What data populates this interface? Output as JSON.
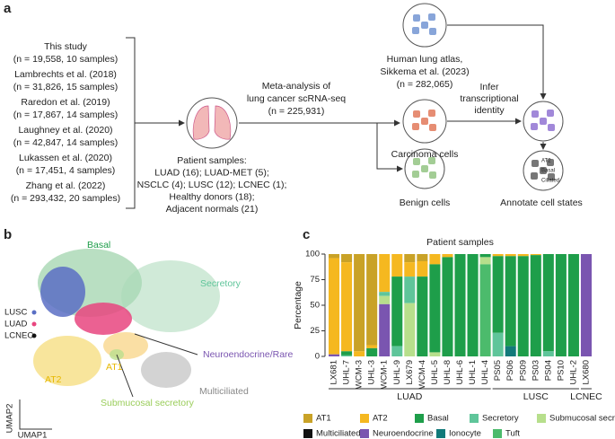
{
  "panel_a": {
    "letter": "a",
    "studies": [
      [
        "This study",
        "(n = 19,558, 10 samples)"
      ],
      [
        "Lambrechts et al. (2018)",
        "(n = 31,826, 15 samples)"
      ],
      [
        "Raredon et al. (2019)",
        "(n = 17,867, 14 samples)"
      ],
      [
        "Laughney et al. (2020)",
        "(n = 42,847, 14 samples)"
      ],
      [
        "Lukassen et al. (2020)",
        "(n = 17,451, 4 samples)"
      ],
      [
        "Zhang et al. (2022)",
        "(n = 293,432, 20 samples)"
      ]
    ],
    "patient_samples": [
      "Patient samples:",
      "LUAD (16); LUAD-MET (5);",
      "NSCLC (4); LUSC (12); LCNEC (1);",
      "Healthy donors (18);",
      "Adjacent normals (21)"
    ],
    "meta_analysis": [
      "Meta-analysis of",
      "lung cancer scRNA-seq",
      "(n = 225,931)"
    ],
    "atlas": [
      "Human lung atlas,",
      "Sikkema et al. (2023)",
      "(n = 282,065)"
    ],
    "carcinoma": "Carcinoma cells",
    "benign": "Benign cells",
    "infer": [
      "Infer",
      "transcriptional",
      "identity"
    ],
    "annotate": "Annotate cell states",
    "annotate_icons": [
      "AT2",
      "Basal",
      "Ciliated"
    ]
  },
  "panel_b": {
    "letter": "b",
    "labels": {
      "basal": "Basal",
      "secretory": "Secretory",
      "neuro": "Neuroendocrine/Rare",
      "at1": "AT1",
      "at2": "AT2",
      "multiciliated": "Multiciliated",
      "submucosal": "Submucosal secretory"
    },
    "legend": [
      "LUSC",
      "LUAD",
      "LCNEC"
    ],
    "xlabel": "UMAP1",
    "ylabel": "UMAP2"
  },
  "panel_c_letter": "c",
  "chart_data": {
    "type": "stacked_bar",
    "title": "Patient samples",
    "ylabel": "Percentage",
    "categories": [
      "LX681",
      "UHL-7",
      "WCM-3",
      "UHL-3",
      "WCM-1",
      "UHL-9",
      "LX679",
      "WCM-4",
      "UHL-5",
      "UHL-8",
      "UHL-6",
      "UHL-1",
      "UHL-4",
      "PS05",
      "PS06",
      "PS09",
      "PS03",
      "PS04",
      "PS10",
      "UHL-2",
      "LX680"
    ],
    "group_labels": [
      "LUAD",
      "LUSC",
      "LCNEC"
    ],
    "ylim": [
      0,
      100
    ],
    "yticks": [
      0,
      25,
      50,
      75,
      100
    ],
    "series": [
      {
        "name": "AT1",
        "color": "#c9a227",
        "values": [
          4,
          8,
          95,
          89,
          0,
          0,
          8,
          7,
          0,
          0,
          0,
          0,
          0,
          0,
          0,
          0,
          0,
          0,
          0,
          0,
          0
        ]
      },
      {
        "name": "AT2",
        "color": "#f5b820",
        "values": [
          94,
          87,
          5,
          3,
          37,
          22,
          14,
          15,
          10,
          3,
          0,
          0,
          0,
          2,
          2,
          2,
          1,
          0,
          0,
          0,
          0
        ]
      },
      {
        "name": "Basal",
        "color": "#1e9e4a",
        "values": [
          0,
          4,
          0,
          8,
          0,
          68,
          0,
          78,
          86,
          97,
          100,
          100,
          3,
          75,
          88,
          98,
          99,
          95,
          100,
          100,
          0
        ]
      },
      {
        "name": "Secretory",
        "color": "#5fc59a",
        "values": [
          0,
          1,
          0,
          0,
          4,
          10,
          26,
          0,
          0,
          0,
          0,
          0,
          0,
          23,
          0,
          0,
          0,
          5,
          0,
          0,
          0
        ]
      },
      {
        "name": "Submucosal secretory",
        "color": "#b7df8c",
        "values": [
          0,
          0,
          0,
          0,
          8,
          0,
          52,
          0,
          4,
          0,
          0,
          0,
          7,
          0,
          0,
          0,
          0,
          0,
          0,
          0,
          0
        ]
      },
      {
        "name": "Multiciliated",
        "color": "#111111",
        "values": [
          0,
          0,
          0,
          0,
          0,
          0,
          0,
          0,
          0,
          0,
          0,
          0,
          0,
          0,
          0,
          0,
          0,
          0,
          0,
          0,
          0
        ]
      },
      {
        "name": "Neuroendocrine",
        "color": "#7a55b0",
        "values": [
          2,
          0,
          0,
          0,
          51,
          0,
          0,
          0,
          0,
          0,
          0,
          0,
          0,
          0,
          0,
          0,
          0,
          0,
          0,
          0,
          100
        ]
      },
      {
        "name": "Ionocyte",
        "color": "#127a7a",
        "values": [
          0,
          0,
          0,
          0,
          0,
          0,
          0,
          0,
          0,
          0,
          0,
          0,
          0,
          0,
          10,
          0,
          0,
          0,
          0,
          0,
          0
        ]
      },
      {
        "name": "Tuft",
        "color": "#4cbb6c",
        "values": [
          0,
          0,
          0,
          0,
          0,
          0,
          0,
          0,
          0,
          0,
          0,
          0,
          90,
          0,
          0,
          0,
          0,
          0,
          0,
          0,
          0
        ]
      }
    ]
  }
}
